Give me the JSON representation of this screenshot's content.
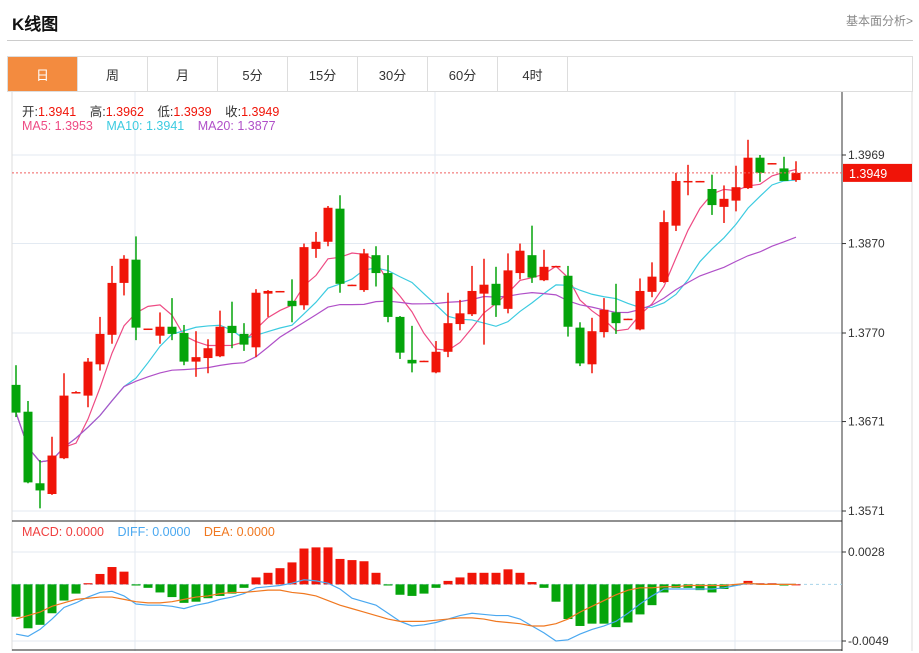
{
  "header": {
    "title": "K线图",
    "link": "基本面分析>"
  },
  "tabs": [
    {
      "label": "日",
      "active": true
    },
    {
      "label": "周"
    },
    {
      "label": "月"
    },
    {
      "label": "5分"
    },
    {
      "label": "15分"
    },
    {
      "label": "30分"
    },
    {
      "label": "60分"
    },
    {
      "label": "4时"
    }
  ],
  "legend": {
    "open_label": "开:",
    "open": "1.3941",
    "high_label": "高:",
    "high": "1.3962",
    "low_label": "低:",
    "low": "1.3939",
    "close_label": "收:",
    "close": "1.3949",
    "ma5_label": "MA5: ",
    "ma5": "1.3953",
    "ma10_label": "MA10: ",
    "ma10": "1.3941",
    "ma20_label": "MA20: ",
    "ma20": "1.3877",
    "macd_label": "MACD: ",
    "macd": "0.0000",
    "diff_label": "DIFF: ",
    "diff": "0.0000",
    "dea_label": "DEA: ",
    "dea": "0.0000"
  },
  "colors": {
    "up": "#f01408",
    "down": "#05a40b",
    "ma5": "#ee4b84",
    "ma10": "#3ccbe0",
    "ma20": "#b050c8",
    "diff": "#4aa8f0",
    "dea": "#f07820",
    "grid": "#e3eaf2"
  },
  "chart_data": [
    {
      "type": "candlestick",
      "yticks": [
        "1.3969",
        "1.3870",
        "1.3770",
        "1.3671",
        "1.3571"
      ],
      "ylim": [
        1.3571,
        1.3969
      ],
      "last_price": "1.3949",
      "grid": true,
      "ohlc": [
        [
          1.3712,
          1.3734,
          1.3676,
          1.3681
        ],
        [
          1.3682,
          1.3694,
          1.3602,
          1.3603
        ],
        [
          1.3602,
          1.3628,
          1.3574,
          1.3594
        ],
        [
          1.359,
          1.3654,
          1.3589,
          1.3633
        ],
        [
          1.363,
          1.3725,
          1.3629,
          1.37
        ],
        [
          1.3703,
          1.3705,
          1.3703,
          1.3704
        ],
        [
          1.37,
          1.3742,
          1.3687,
          1.3738
        ],
        [
          1.3735,
          1.3788,
          1.3728,
          1.3769
        ],
        [
          1.3768,
          1.3845,
          1.3758,
          1.3826
        ],
        [
          1.3826,
          1.3857,
          1.3812,
          1.3853
        ],
        [
          1.3852,
          1.3878,
          1.3762,
          1.3776
        ],
        [
          1.3774,
          1.3775,
          1.3774,
          1.3775
        ],
        [
          1.3767,
          1.3793,
          1.3758,
          1.3777
        ],
        [
          1.3777,
          1.3809,
          1.3762,
          1.3769
        ],
        [
          1.377,
          1.3779,
          1.3734,
          1.3738
        ],
        [
          1.3738,
          1.3772,
          1.3721,
          1.3743
        ],
        [
          1.3742,
          1.3763,
          1.3725,
          1.3753
        ],
        [
          1.3744,
          1.3795,
          1.3743,
          1.3777
        ],
        [
          1.3778,
          1.3805,
          1.3753,
          1.377
        ],
        [
          1.3769,
          1.3781,
          1.375,
          1.3757
        ],
        [
          1.3754,
          1.3819,
          1.3743,
          1.3815
        ],
        [
          1.3814,
          1.3818,
          1.3788,
          1.3817
        ],
        [
          1.3816,
          1.3817,
          1.3816,
          1.3817
        ],
        [
          1.3806,
          1.383,
          1.3782,
          1.38
        ],
        [
          1.3801,
          1.387,
          1.3796,
          1.3866
        ],
        [
          1.3864,
          1.3883,
          1.3854,
          1.3872
        ],
        [
          1.3872,
          1.3912,
          1.3867,
          1.391
        ],
        [
          1.3909,
          1.3924,
          1.3815,
          1.3825
        ],
        [
          1.3823,
          1.3824,
          1.3823,
          1.3824
        ],
        [
          1.3818,
          1.3864,
          1.3816,
          1.3859
        ],
        [
          1.3857,
          1.3867,
          1.3822,
          1.3837
        ],
        [
          1.3837,
          1.3857,
          1.3782,
          1.3788
        ],
        [
          1.3788,
          1.3789,
          1.3741,
          1.3748
        ],
        [
          1.374,
          1.3778,
          1.3726,
          1.3736
        ],
        [
          1.3738,
          1.3739,
          1.3738,
          1.3739
        ],
        [
          1.3726,
          1.3761,
          1.3725,
          1.3749
        ],
        [
          1.3749,
          1.3815,
          1.3743,
          1.3781
        ],
        [
          1.378,
          1.3807,
          1.3773,
          1.3792
        ],
        [
          1.3791,
          1.3845,
          1.3789,
          1.3817
        ],
        [
          1.3814,
          1.3853,
          1.3757,
          1.3824
        ],
        [
          1.3825,
          1.3844,
          1.3788,
          1.3801
        ],
        [
          1.3797,
          1.3859,
          1.3792,
          1.384
        ],
        [
          1.3837,
          1.387,
          1.383,
          1.3862
        ],
        [
          1.3857,
          1.389,
          1.3826,
          1.3832
        ],
        [
          1.3829,
          1.3863,
          1.3828,
          1.3844
        ],
        [
          1.3844,
          1.3845,
          1.3844,
          1.3845
        ],
        [
          1.3834,
          1.3845,
          1.3766,
          1.3777
        ],
        [
          1.3776,
          1.3782,
          1.3733,
          1.3736
        ],
        [
          1.3735,
          1.3787,
          1.3725,
          1.3772
        ],
        [
          1.3771,
          1.3809,
          1.3765,
          1.3796
        ],
        [
          1.3793,
          1.3825,
          1.3769,
          1.3781
        ],
        [
          1.3785,
          1.3786,
          1.3785,
          1.3786
        ],
        [
          1.3774,
          1.3831,
          1.3773,
          1.3817
        ],
        [
          1.3816,
          1.3849,
          1.381,
          1.3833
        ],
        [
          1.3827,
          1.3907,
          1.3826,
          1.3894
        ],
        [
          1.389,
          1.3949,
          1.3884,
          1.394
        ],
        [
          1.3939,
          1.3958,
          1.3924,
          1.394
        ],
        [
          1.3939,
          1.394,
          1.3939,
          1.394
        ],
        [
          1.3931,
          1.3947,
          1.3902,
          1.3913
        ],
        [
          1.3911,
          1.3935,
          1.3893,
          1.392
        ],
        [
          1.3918,
          1.3957,
          1.3906,
          1.3933
        ],
        [
          1.3932,
          1.3986,
          1.3931,
          1.3966
        ],
        [
          1.3966,
          1.3969,
          1.3939,
          1.3949
        ],
        [
          1.3959,
          1.396,
          1.3959,
          1.396
        ],
        [
          1.3954,
          1.3967,
          1.394,
          1.394
        ],
        [
          1.3941,
          1.3962,
          1.3939,
          1.3949
        ]
      ],
      "series": [
        {
          "name": "MA5"
        },
        {
          "name": "MA10"
        },
        {
          "name": "MA20"
        }
      ]
    },
    {
      "type": "bar+line",
      "yticks": [
        "0.0028",
        "-0.0049"
      ],
      "ylim": [
        -0.0049,
        0.0028
      ],
      "macd": [
        -0.0028,
        -0.0038,
        -0.0035,
        -0.0025,
        -0.0014,
        -0.0008,
        0.0001,
        0.0009,
        0.0015,
        0.0011,
        -0.0001,
        -0.0003,
        -0.0007,
        -0.0011,
        -0.0016,
        -0.0015,
        -0.0012,
        -0.001,
        -0.0008,
        -0.0003,
        0.0006,
        0.001,
        0.0014,
        0.0019,
        0.0031,
        0.0032,
        0.0032,
        0.0022,
        0.0021,
        0.002,
        0.001,
        -0.0001,
        -0.0009,
        -0.001,
        -0.0008,
        -0.0003,
        0.0003,
        0.0006,
        0.001,
        0.001,
        0.001,
        0.0013,
        0.001,
        0.0002,
        -0.0003,
        -0.0015,
        -0.003,
        -0.0036,
        -0.0034,
        -0.0034,
        -0.0037,
        -0.0033,
        -0.0026,
        -0.0018,
        -0.0007,
        -0.0003,
        -0.0003,
        -0.0005,
        -0.0007,
        -0.0004,
        -0.0001,
        0.0003,
        0.0001,
        0.0001,
        -0.0001,
        0.0
      ],
      "diff": [
        -0.0043,
        -0.0045,
        -0.0039,
        -0.003,
        -0.002,
        -0.0016,
        -0.0011,
        -0.0007,
        -0.0006,
        -0.001,
        -0.0017,
        -0.0018,
        -0.0018,
        -0.0019,
        -0.0021,
        -0.0018,
        -0.0016,
        -0.0013,
        -0.0011,
        -0.0008,
        -0.0003,
        -0.0002,
        -0.0001,
        0.0001,
        0.0004,
        0.0003,
        0.0001,
        -0.0004,
        -0.0012,
        -0.0015,
        -0.0018,
        -0.0025,
        -0.0032,
        -0.0036,
        -0.0035,
        -0.0033,
        -0.003,
        -0.0027,
        -0.0025,
        -0.0026,
        -0.0027,
        -0.0027,
        -0.003,
        -0.0036,
        -0.0042,
        -0.0049,
        -0.0048,
        -0.0043,
        -0.0039,
        -0.0036,
        -0.0032,
        -0.0025,
        -0.0017,
        -0.001,
        -0.0004,
        -0.0004,
        -0.0004,
        -0.0004,
        -0.0004,
        -0.0003,
        -0.0001,
        0.0001,
        0.0,
        0.0,
        0.0,
        0.0
      ],
      "dea": [
        -0.003,
        -0.0027,
        -0.0024,
        -0.0019,
        -0.0016,
        -0.0013,
        -0.0012,
        -0.0011,
        -0.0011,
        -0.0013,
        -0.0015,
        -0.0016,
        -0.0016,
        -0.0015,
        -0.0013,
        -0.0011,
        -0.001,
        -0.0008,
        -0.0007,
        -0.0007,
        -0.0006,
        -0.0005,
        -0.0005,
        -0.0007,
        -0.0008,
        -0.001,
        -0.0014,
        -0.0018,
        -0.0021,
        -0.0024,
        -0.0027,
        -0.003,
        -0.0032,
        -0.0032,
        -0.0032,
        -0.0031,
        -0.003,
        -0.0029,
        -0.0029,
        -0.003,
        -0.0032,
        -0.0033,
        -0.0034,
        -0.0036,
        -0.0036,
        -0.0034,
        -0.003,
        -0.0024,
        -0.0019,
        -0.0014,
        -0.0009,
        -0.0005,
        -0.0003,
        -0.0003,
        -0.0002,
        -0.0002,
        -0.0001,
        -0.0001,
        -0.0001,
        -0.0001,
        0.0,
        0.0001,
        0.0,
        0.0,
        0.0,
        0.0
      ],
      "series": [
        {
          "name": "MACD"
        },
        {
          "name": "DIFF"
        },
        {
          "name": "DEA"
        }
      ]
    }
  ]
}
